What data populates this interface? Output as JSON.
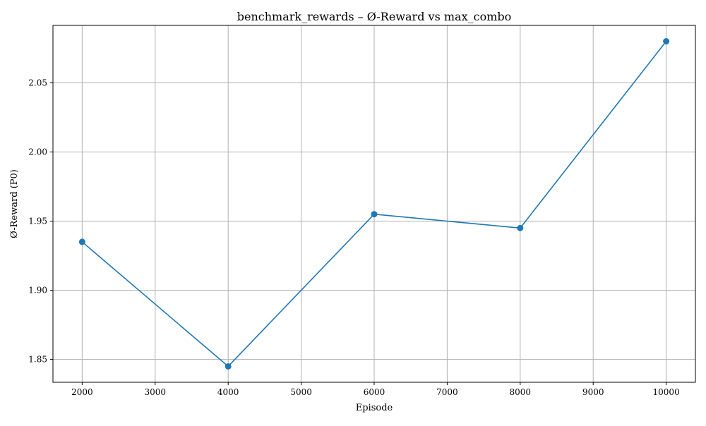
{
  "chart_data": {
    "type": "line",
    "title": "benchmark_rewards – Ø-Reward vs max_combo",
    "xlabel": "Episode",
    "ylabel": "Ø-Reward (P0)",
    "x": [
      2000,
      4000,
      6000,
      8000,
      10000
    ],
    "series": [
      {
        "values": [
          1.935,
          1.845,
          1.955,
          1.945,
          2.08
        ],
        "color": "#1f77b4",
        "marker": "circle"
      }
    ],
    "xlim": [
      1600,
      10400
    ],
    "ylim": [
      1.8335,
      2.0915
    ],
    "xticks": [
      2000,
      3000,
      4000,
      5000,
      6000,
      7000,
      8000,
      9000,
      10000
    ],
    "yticks": [
      1.85,
      1.9,
      1.95,
      2.0,
      2.05
    ],
    "ytick_labels": [
      "1.85",
      "1.90",
      "1.95",
      "2.00",
      "2.05"
    ],
    "grid": true,
    "legend": "none"
  }
}
